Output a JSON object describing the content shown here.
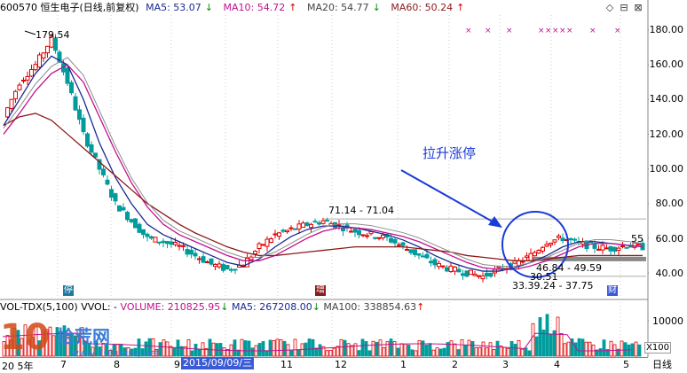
{
  "header": {
    "title": "600570 恒生电子(日线,前复权)",
    "ma5_label": "MA5: 53.07",
    "ma10_label": "MA10: 54.72",
    "ma20_label": "MA20: 54.77",
    "ma60_label": "MA60: 50.24",
    "ma5_dir": "↓",
    "ma10_dir": "↑",
    "ma20_dir": "↓",
    "ma60_dir": "↑"
  },
  "window_controls": {
    "restore": "◇",
    "minimize": "⊟",
    "close": "⊠"
  },
  "price_axis": [
    "180.00",
    "160.00",
    "140.00",
    "120.00",
    "100.00",
    "80.00",
    "60.00",
    "40.00"
  ],
  "price_labels": {
    "high": "179.54",
    "resistance": "71.14 - 71.04",
    "mid": "46.84 - 49.59",
    "low1": "30.51",
    "low2": "33.39.24 - 37.75",
    "last": "55"
  },
  "annotation": {
    "text": "拉升涨停"
  },
  "volume_header": {
    "vol_label": "VOL-TDX(5,100)",
    "vvol_label": "VVOL: -",
    "volume_label": "VOLUME: 210825.95",
    "volume_dir": "↓",
    "ma5_label": "MA5: 267208.00",
    "ma5_dir": "↓",
    "ma100_label": "MA100: 338854.63",
    "ma100_dir": "↑"
  },
  "volume_axis": [
    "10000"
  ],
  "x_multiplier": "X100",
  "date_axis": {
    "labels": [
      "20 5年",
      "7",
      "8",
      "9",
      "10",
      "11",
      "12",
      "1",
      "2",
      "3",
      "4",
      "5"
    ],
    "highlight": "2015/09/09/三"
  },
  "badges": {
    "b1": "停",
    "b2": "增",
    "b3": "财"
  },
  "period_button": "日线",
  "watermark": {
    "mark": "10",
    "site": "拾荒网",
    "url": "www.10huang.net"
  },
  "colors": {
    "up": "#e10000",
    "down": "#009c9c",
    "ma5": "#1b2a8f",
    "ma10": "#c0128e",
    "ma20": "#8c8c8c",
    "ma60": "#8b1a1a",
    "annotation": "#1a3bd6"
  },
  "chart_data": {
    "type": "candlestick",
    "title": "600570 恒生电子(日线,前复权)",
    "y_range": [
      35,
      185
    ],
    "x_labels": [
      "7",
      "8",
      "9",
      "10",
      "11",
      "12",
      "1",
      "2",
      "3",
      "4",
      "5"
    ],
    "series": [
      {
        "name": "close",
        "values": [
          130,
          150,
          160,
          175,
          150,
          120,
          100,
          80,
          70,
          60,
          58,
          55,
          50,
          45,
          42,
          45,
          55,
          62,
          65,
          68,
          70,
          67,
          64,
          62,
          60,
          55,
          50,
          45,
          42,
          40,
          38,
          42,
          45,
          50,
          58,
          60,
          57,
          55,
          54,
          56,
          55
        ]
      },
      {
        "name": "MA5",
        "values": [
          125,
          140,
          155,
          165,
          160,
          140,
          115,
          95,
          80,
          68,
          62,
          58,
          54,
          50,
          46,
          44,
          48,
          55,
          61,
          65,
          67,
          67,
          66,
          64,
          62,
          59,
          55,
          50,
          46,
          43,
          41,
          41,
          43,
          46,
          50,
          55,
          58,
          58,
          57,
          56,
          55
        ]
      },
      {
        "name": "MA10",
        "values": [
          120,
          132,
          145,
          155,
          160,
          150,
          130,
          110,
          92,
          78,
          68,
          62,
          58,
          54,
          50,
          47,
          47,
          50,
          55,
          60,
          64,
          66,
          66,
          65,
          63,
          61,
          58,
          54,
          50,
          46,
          43,
          42,
          42,
          44,
          47,
          51,
          55,
          57,
          57,
          56,
          55
        ]
      },
      {
        "name": "MA60",
        "values": [
          125,
          130,
          132,
          128,
          120,
          112,
          104,
          96,
          88,
          80,
          74,
          68,
          63,
          59,
          55,
          52,
          50,
          50,
          51,
          52,
          53,
          54,
          55,
          55,
          55,
          55,
          54,
          53,
          52,
          50,
          49,
          48,
          47,
          47,
          48,
          49,
          50,
          50,
          50,
          50,
          50
        ]
      }
    ]
  }
}
